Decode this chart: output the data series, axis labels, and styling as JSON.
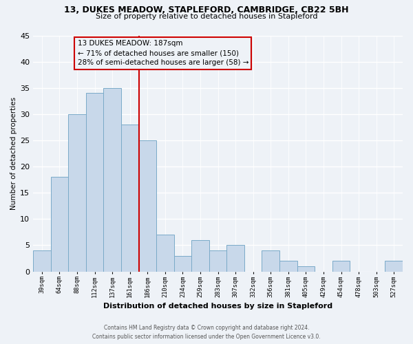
{
  "title": "13, DUKES MEADOW, STAPLEFORD, CAMBRIDGE, CB22 5BH",
  "subtitle": "Size of property relative to detached houses in Stapleford",
  "xlabel": "Distribution of detached houses by size in Stapleford",
  "ylabel": "Number of detached properties",
  "bar_labels": [
    "39sqm",
    "64sqm",
    "88sqm",
    "112sqm",
    "137sqm",
    "161sqm",
    "186sqm",
    "210sqm",
    "234sqm",
    "259sqm",
    "283sqm",
    "307sqm",
    "332sqm",
    "356sqm",
    "381sqm",
    "405sqm",
    "429sqm",
    "454sqm",
    "478sqm",
    "503sqm",
    "527sqm"
  ],
  "bar_values": [
    4,
    18,
    30,
    34,
    35,
    28,
    25,
    7,
    3,
    6,
    4,
    5,
    0,
    4,
    2,
    1,
    0,
    2,
    0,
    0,
    2
  ],
  "bar_color": "#c8d8ea",
  "bar_edge_color": "#7aaac8",
  "vline_color": "#cc0000",
  "annotation_title": "13 DUKES MEADOW: 187sqm",
  "annotation_line1": "← 71% of detached houses are smaller (150)",
  "annotation_line2": "28% of semi-detached houses are larger (58) →",
  "ylim": [
    0,
    45
  ],
  "yticks": [
    0,
    5,
    10,
    15,
    20,
    25,
    30,
    35,
    40,
    45
  ],
  "footnote1": "Contains HM Land Registry data © Crown copyright and database right 2024.",
  "footnote2": "Contains public sector information licensed under the Open Government Licence v3.0.",
  "background_color": "#eef2f7"
}
